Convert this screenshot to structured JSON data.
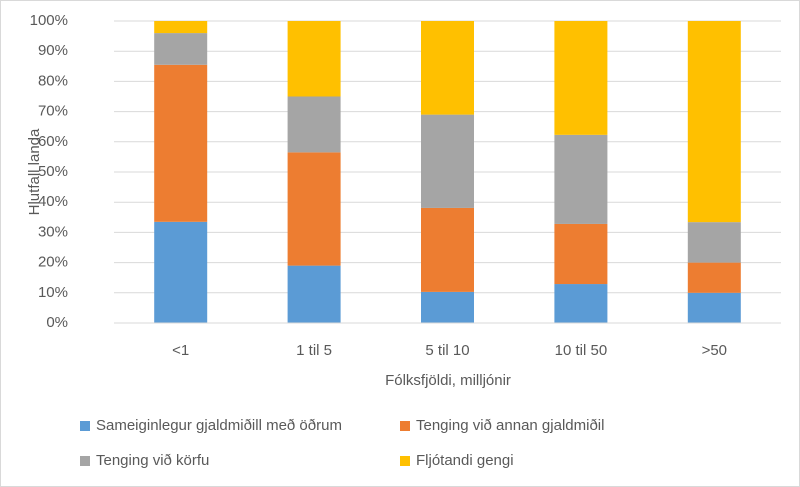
{
  "chart_data": {
    "type": "stacked_bar",
    "x_label": "Fólksfjöldi, milljónir",
    "y_label": "Hlutfall landa",
    "categories": [
      "<1",
      "1 til 5",
      "5 til 10",
      "10 til 50",
      ">50"
    ],
    "series": [
      {
        "name": "Sameiginlegur gjaldmiðill með öðrum",
        "color": "#5b9bd5",
        "values": [
          33.5,
          19,
          10.3,
          12.9,
          10
        ]
      },
      {
        "name": "Tenging við annan gjaldmiðil",
        "color": "#ed7d31",
        "values": [
          52,
          37.5,
          27.8,
          19.9,
          10
        ]
      },
      {
        "name": "Tenging við körfu",
        "color": "#a5a5a5",
        "values": [
          10.5,
          18.5,
          30.9,
          29.5,
          13.4
        ]
      },
      {
        "name": "Fljótandi gengi",
        "color": "#ffc000",
        "values": [
          4,
          25,
          31,
          37.7,
          66.6
        ]
      }
    ],
    "ylim": [
      0,
      100
    ],
    "yticks": [
      {
        "value": 0,
        "label": "0%"
      },
      {
        "value": 10,
        "label": "10%"
      },
      {
        "value": 20,
        "label": "20%"
      },
      {
        "value": 30,
        "label": "30%"
      },
      {
        "value": 40,
        "label": "40%"
      },
      {
        "value": 50,
        "label": "50%"
      },
      {
        "value": 60,
        "label": "60%"
      },
      {
        "value": 70,
        "label": "70%"
      },
      {
        "value": 80,
        "label": "80%"
      },
      {
        "value": 90,
        "label": "90%"
      },
      {
        "value": 100,
        "label": "100%"
      }
    ],
    "grid": true
  }
}
